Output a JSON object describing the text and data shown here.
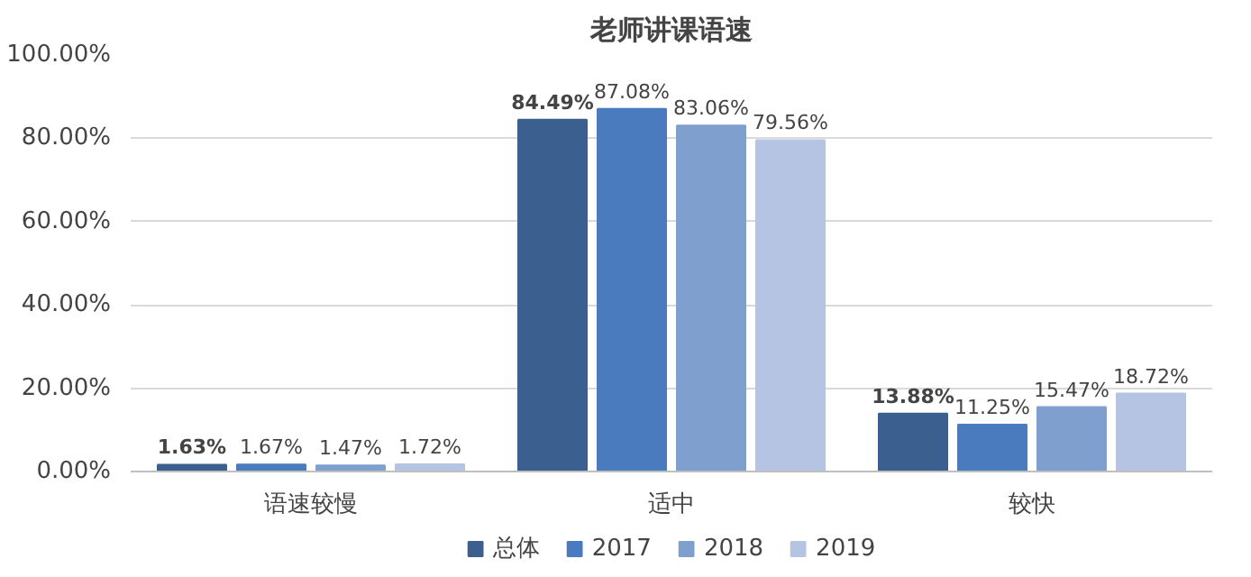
{
  "chart_data": {
    "type": "bar",
    "title": "老师讲课语速",
    "categories": [
      "语速较慢",
      "适中",
      "较快"
    ],
    "ylim": [
      0,
      100
    ],
    "yticks": [
      {
        "value": 0,
        "label": "0.00%"
      },
      {
        "value": 20,
        "label": "20.00%"
      },
      {
        "value": 40,
        "label": "40.00%"
      },
      {
        "value": 60,
        "label": "60.00%"
      },
      {
        "value": 80,
        "label": "80.00%"
      },
      {
        "value": 100,
        "label": "100.00%"
      }
    ],
    "grid": "y",
    "legend": "bottom",
    "series": [
      {
        "name": "总体",
        "color": "#3b5f8f",
        "values": [
          1.63,
          84.49,
          13.88
        ],
        "value_labels": [
          "1.63%",
          "84.49%",
          "13.88%"
        ]
      },
      {
        "name": "2017",
        "color": "#4a7bbf",
        "values": [
          1.67,
          87.08,
          11.25
        ],
        "value_labels": [
          "1.67%",
          "87.08%",
          "11.25%"
        ]
      },
      {
        "name": "2018",
        "color": "#7f9fcf",
        "values": [
          1.47,
          83.06,
          15.47
        ],
        "value_labels": [
          "1.47%",
          "83.06%",
          "15.47%"
        ]
      },
      {
        "name": "2019",
        "color": "#b4c4e2",
        "values": [
          1.72,
          79.56,
          18.72
        ],
        "value_labels": [
          "1.72%",
          "79.56%",
          "18.72%"
        ]
      }
    ]
  }
}
